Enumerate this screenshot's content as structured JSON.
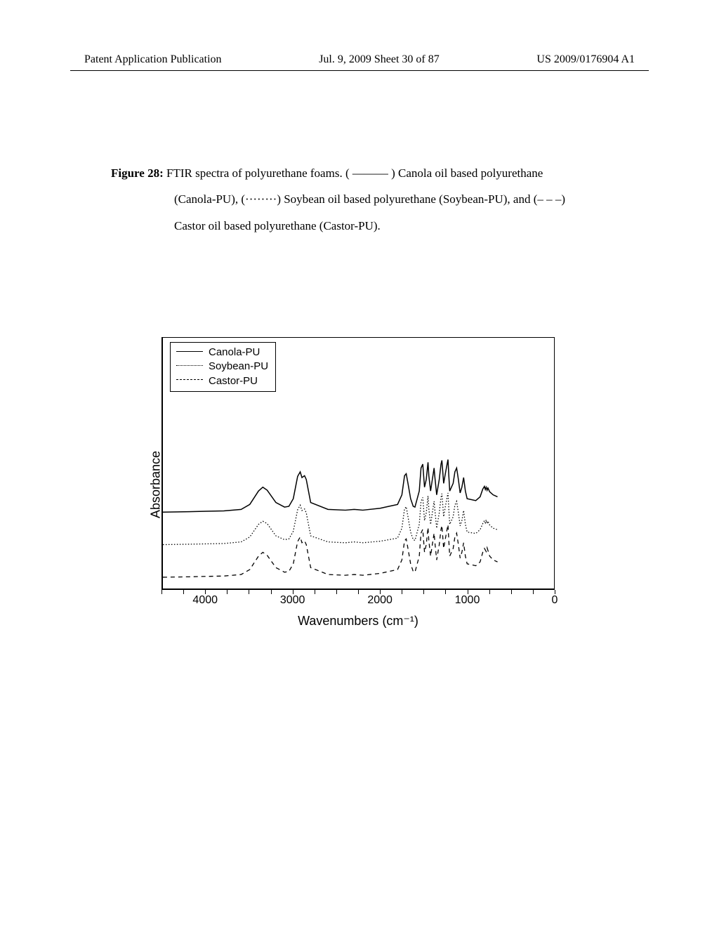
{
  "header": {
    "left": "Patent Application Publication",
    "center": "Jul. 9, 2009  Sheet 30 of 87",
    "right": "US 2009/0176904 A1"
  },
  "caption": {
    "figure_label": "Figure 28:",
    "line1_rest": "  FTIR spectra of polyurethane foams.   ( ——— ) Canola oil based polyurethane",
    "line2": "(Canola-PU), (········) Soybean oil based polyurethane (Soybean-PU), and (– – –)",
    "line3": "Castor oil based polyurethane (Castor-PU)."
  },
  "chart": {
    "type": "line",
    "ylabel": "Absorbance",
    "xlabel": "Wavenumbers (cm⁻¹)",
    "xlim": [
      4500,
      0
    ],
    "x_ticks": [
      4000,
      3000,
      2000,
      1000,
      0
    ],
    "plot_bg": "#ffffff",
    "axis_color": "#000000",
    "legend": [
      {
        "label": "Canola-PU",
        "style": "solid"
      },
      {
        "label": "Soybean-PU",
        "style": "dotted"
      },
      {
        "label": "Castor-PU",
        "style": "dashed"
      }
    ],
    "series": {
      "castor_dashed": {
        "color": "#000000",
        "dash": "6,5",
        "width": 1.3,
        "y_offset": 0,
        "points": [
          [
            4500,
            185
          ],
          [
            4200,
            184
          ],
          [
            4000,
            183
          ],
          [
            3800,
            182
          ],
          [
            3600,
            178
          ],
          [
            3500,
            165
          ],
          [
            3400,
            130
          ],
          [
            3350,
            120
          ],
          [
            3300,
            128
          ],
          [
            3200,
            160
          ],
          [
            3100,
            172
          ],
          [
            3050,
            170
          ],
          [
            3000,
            150
          ],
          [
            2950,
            92
          ],
          [
            2920,
            80
          ],
          [
            2900,
            95
          ],
          [
            2870,
            90
          ],
          [
            2850,
            100
          ],
          [
            2800,
            160
          ],
          [
            2600,
            178
          ],
          [
            2400,
            180
          ],
          [
            2300,
            178
          ],
          [
            2200,
            180
          ],
          [
            2000,
            175
          ],
          [
            1900,
            170
          ],
          [
            1800,
            165
          ],
          [
            1750,
            140
          ],
          [
            1720,
            90
          ],
          [
            1700,
            85
          ],
          [
            1680,
            110
          ],
          [
            1650,
            150
          ],
          [
            1620,
            170
          ],
          [
            1600,
            172
          ],
          [
            1550,
            130
          ],
          [
            1530,
            70
          ],
          [
            1510,
            60
          ],
          [
            1490,
            120
          ],
          [
            1470,
            100
          ],
          [
            1450,
            55
          ],
          [
            1440,
            90
          ],
          [
            1420,
            130
          ],
          [
            1400,
            100
          ],
          [
            1380,
            70
          ],
          [
            1370,
            95
          ],
          [
            1350,
            140
          ],
          [
            1320,
            100
          ],
          [
            1300,
            60
          ],
          [
            1290,
            50
          ],
          [
            1270,
            110
          ],
          [
            1250,
            85
          ],
          [
            1230,
            60
          ],
          [
            1220,
            48
          ],
          [
            1210,
            90
          ],
          [
            1200,
            130
          ],
          [
            1160,
            110
          ],
          [
            1140,
            80
          ],
          [
            1120,
            70
          ],
          [
            1100,
            100
          ],
          [
            1080,
            135
          ],
          [
            1060,
            120
          ],
          [
            1040,
            95
          ],
          [
            1020,
            130
          ],
          [
            1000,
            150
          ],
          [
            900,
            155
          ],
          [
            850,
            145
          ],
          [
            820,
            120
          ],
          [
            800,
            110
          ],
          [
            780,
            118
          ],
          [
            770,
            108
          ],
          [
            760,
            115
          ],
          [
            740,
            130
          ],
          [
            700,
            140
          ],
          [
            650,
            145
          ]
        ]
      },
      "soybean_dotted": {
        "color": "#000000",
        "dash": "1.5,2.5",
        "width": 1.3,
        "y_offset": 85,
        "points": [
          [
            4500,
            185
          ],
          [
            4200,
            184
          ],
          [
            4000,
            183
          ],
          [
            3800,
            182
          ],
          [
            3600,
            178
          ],
          [
            3500,
            165
          ],
          [
            3400,
            132
          ],
          [
            3350,
            124
          ],
          [
            3300,
            130
          ],
          [
            3200,
            162
          ],
          [
            3100,
            172
          ],
          [
            3050,
            170
          ],
          [
            3000,
            150
          ],
          [
            2950,
            94
          ],
          [
            2920,
            82
          ],
          [
            2900,
            96
          ],
          [
            2870,
            92
          ],
          [
            2850,
            102
          ],
          [
            2800,
            162
          ],
          [
            2600,
            178
          ],
          [
            2400,
            180
          ],
          [
            2300,
            178
          ],
          [
            2200,
            180
          ],
          [
            2000,
            176
          ],
          [
            1900,
            172
          ],
          [
            1800,
            168
          ],
          [
            1750,
            142
          ],
          [
            1720,
            92
          ],
          [
            1700,
            86
          ],
          [
            1680,
            112
          ],
          [
            1650,
            152
          ],
          [
            1620,
            172
          ],
          [
            1600,
            174
          ],
          [
            1550,
            132
          ],
          [
            1530,
            72
          ],
          [
            1510,
            62
          ],
          [
            1490,
            122
          ],
          [
            1470,
            102
          ],
          [
            1450,
            58
          ],
          [
            1440,
            92
          ],
          [
            1420,
            132
          ],
          [
            1400,
            102
          ],
          [
            1380,
            72
          ],
          [
            1370,
            96
          ],
          [
            1350,
            142
          ],
          [
            1320,
            102
          ],
          [
            1300,
            62
          ],
          [
            1290,
            52
          ],
          [
            1270,
            112
          ],
          [
            1250,
            86
          ],
          [
            1230,
            62
          ],
          [
            1220,
            50
          ],
          [
            1210,
            92
          ],
          [
            1200,
            132
          ],
          [
            1160,
            112
          ],
          [
            1140,
            82
          ],
          [
            1120,
            72
          ],
          [
            1100,
            102
          ],
          [
            1080,
            136
          ],
          [
            1060,
            122
          ],
          [
            1040,
            96
          ],
          [
            1020,
            132
          ],
          [
            1000,
            152
          ],
          [
            900,
            156
          ],
          [
            850,
            146
          ],
          [
            820,
            130
          ],
          [
            800,
            122
          ],
          [
            790,
            128
          ],
          [
            780,
            120
          ],
          [
            770,
            130
          ],
          [
            760,
            124
          ],
          [
            740,
            134
          ],
          [
            700,
            142
          ],
          [
            650,
            146
          ]
        ]
      },
      "canola_solid": {
        "color": "#000000",
        "dash": "",
        "width": 1.5,
        "y_offset": 170,
        "points": [
          [
            4500,
            185
          ],
          [
            4200,
            184
          ],
          [
            4000,
            183
          ],
          [
            3800,
            182
          ],
          [
            3600,
            178
          ],
          [
            3500,
            165
          ],
          [
            3400,
            130
          ],
          [
            3350,
            120
          ],
          [
            3300,
            128
          ],
          [
            3200,
            160
          ],
          [
            3100,
            172
          ],
          [
            3050,
            170
          ],
          [
            3000,
            150
          ],
          [
            2950,
            92
          ],
          [
            2920,
            80
          ],
          [
            2900,
            95
          ],
          [
            2870,
            90
          ],
          [
            2850,
            100
          ],
          [
            2800,
            160
          ],
          [
            2600,
            178
          ],
          [
            2400,
            180
          ],
          [
            2300,
            178
          ],
          [
            2200,
            180
          ],
          [
            2000,
            175
          ],
          [
            1900,
            170
          ],
          [
            1800,
            165
          ],
          [
            1750,
            140
          ],
          [
            1720,
            90
          ],
          [
            1700,
            85
          ],
          [
            1680,
            110
          ],
          [
            1650,
            150
          ],
          [
            1620,
            170
          ],
          [
            1600,
            172
          ],
          [
            1550,
            130
          ],
          [
            1530,
            70
          ],
          [
            1510,
            60
          ],
          [
            1490,
            120
          ],
          [
            1470,
            100
          ],
          [
            1450,
            55
          ],
          [
            1440,
            90
          ],
          [
            1420,
            130
          ],
          [
            1400,
            100
          ],
          [
            1380,
            70
          ],
          [
            1370,
            95
          ],
          [
            1350,
            140
          ],
          [
            1320,
            100
          ],
          [
            1300,
            60
          ],
          [
            1290,
            50
          ],
          [
            1270,
            110
          ],
          [
            1250,
            85
          ],
          [
            1230,
            60
          ],
          [
            1220,
            48
          ],
          [
            1210,
            90
          ],
          [
            1200,
            130
          ],
          [
            1160,
            110
          ],
          [
            1140,
            80
          ],
          [
            1120,
            70
          ],
          [
            1100,
            100
          ],
          [
            1080,
            135
          ],
          [
            1060,
            120
          ],
          [
            1040,
            95
          ],
          [
            1020,
            130
          ],
          [
            1000,
            150
          ],
          [
            900,
            155
          ],
          [
            850,
            145
          ],
          [
            820,
            125
          ],
          [
            800,
            118
          ],
          [
            790,
            126
          ],
          [
            780,
            120
          ],
          [
            770,
            128
          ],
          [
            760,
            122
          ],
          [
            740,
            132
          ],
          [
            700,
            140
          ],
          [
            650,
            145
          ]
        ]
      }
    }
  }
}
